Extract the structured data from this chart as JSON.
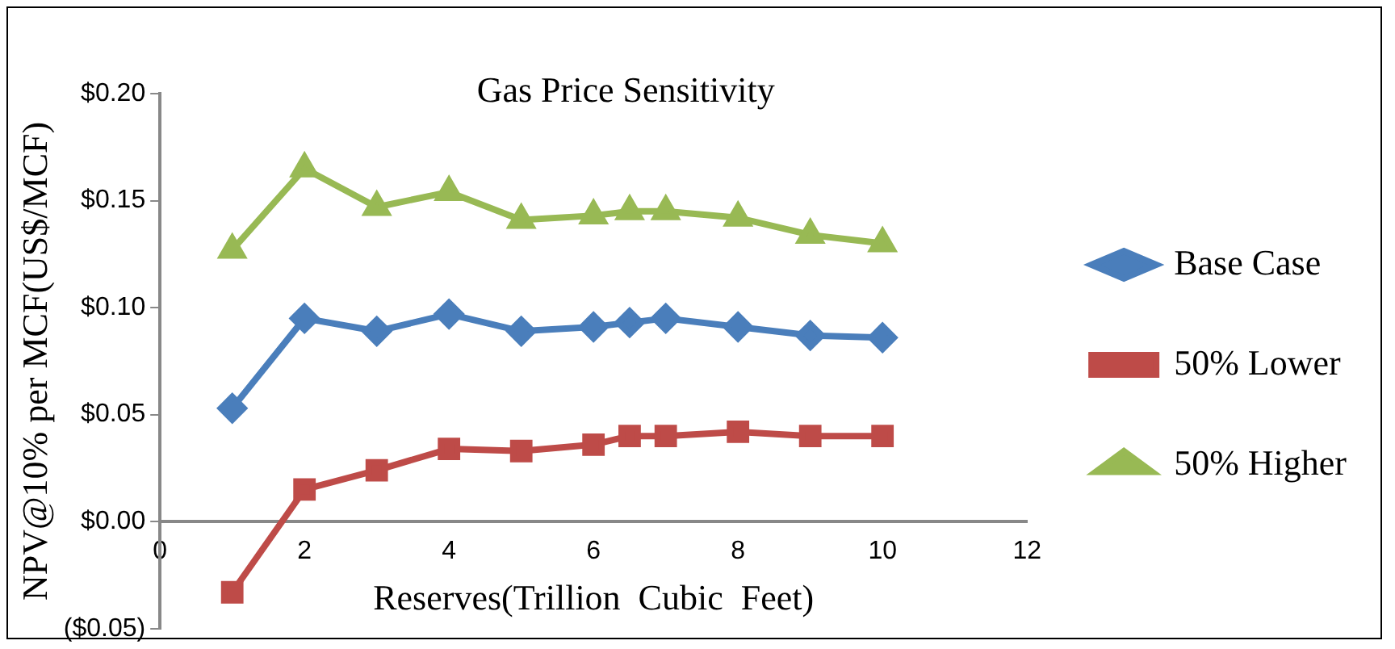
{
  "chart_data": {
    "type": "line",
    "title": "Gas Price Sensitivity",
    "xlabel": "Reserves(Trillion  Cubic  Feet)",
    "ylabel": "NPV@10% per MCF(US$/MCF)",
    "x": [
      1,
      2,
      3,
      4,
      5,
      6,
      6.5,
      7,
      8,
      9,
      10
    ],
    "series": [
      {
        "name": "Base Case",
        "color": "#4a7ebb",
        "marker": "diamond",
        "values": [
          0.053,
          0.095,
          0.089,
          0.097,
          0.089,
          0.091,
          0.093,
          0.095,
          0.091,
          0.087,
          0.086
        ]
      },
      {
        "name": "50% Lower",
        "color": "#be4b48",
        "marker": "square",
        "values": [
          -0.033,
          0.015,
          0.024,
          0.034,
          0.033,
          0.036,
          0.04,
          0.04,
          0.042,
          0.04,
          0.04
        ]
      },
      {
        "name": "50% Higher",
        "color": "#98b954",
        "marker": "triangle",
        "values": [
          0.127,
          0.165,
          0.147,
          0.154,
          0.141,
          0.143,
          0.145,
          0.145,
          0.142,
          0.134,
          0.13
        ]
      }
    ],
    "xlim": [
      0,
      12
    ],
    "xticks": [
      0,
      2,
      4,
      6,
      8,
      10,
      12
    ],
    "ylim": [
      -0.05,
      0.2
    ],
    "yticks": [
      {
        "value": -0.05,
        "label": "($0.05)"
      },
      {
        "value": 0,
        "label": "$0.00"
      },
      {
        "value": 0.05,
        "label": "$0.05"
      },
      {
        "value": 0.1,
        "label": "$0.10"
      },
      {
        "value": 0.15,
        "label": "$0.15"
      },
      {
        "value": 0.2,
        "label": "$0.20"
      }
    ],
    "grid": false,
    "legend": "right"
  }
}
